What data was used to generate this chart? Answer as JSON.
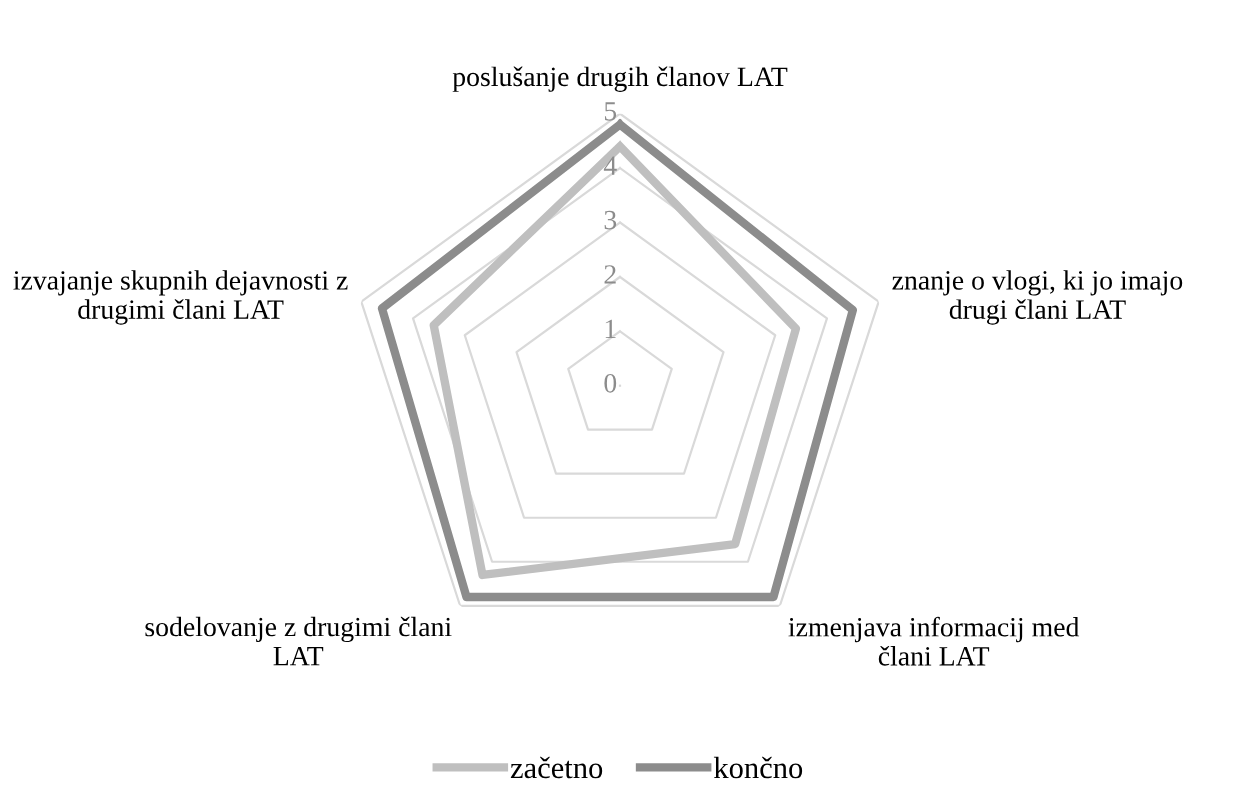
{
  "chart_data": {
    "type": "radar",
    "categories": [
      "poslušanje drugih članov LAT",
      "znanje o vlogi, ki jo imajo drugi člani LAT",
      "izmenjava informacij med člani LAT",
      "sodelovanje z drugimi člani LAT",
      "izvajanje skupnih dejavnosti z drugimi člani LAT"
    ],
    "series": [
      {
        "name": "začetno",
        "color": "#bfbfbf",
        "values": [
          4.4,
          3.4,
          3.6,
          4.3,
          3.6
        ]
      },
      {
        "name": "končno",
        "color": "#8c8c8c",
        "values": [
          4.8,
          4.5,
          4.8,
          4.8,
          4.6
        ]
      }
    ],
    "ylim": [
      0,
      5
    ],
    "yticks": [
      0,
      1,
      2,
      3,
      4,
      5
    ],
    "grid": true,
    "legend": "bottom",
    "marker": "none",
    "line_style": "solid"
  }
}
